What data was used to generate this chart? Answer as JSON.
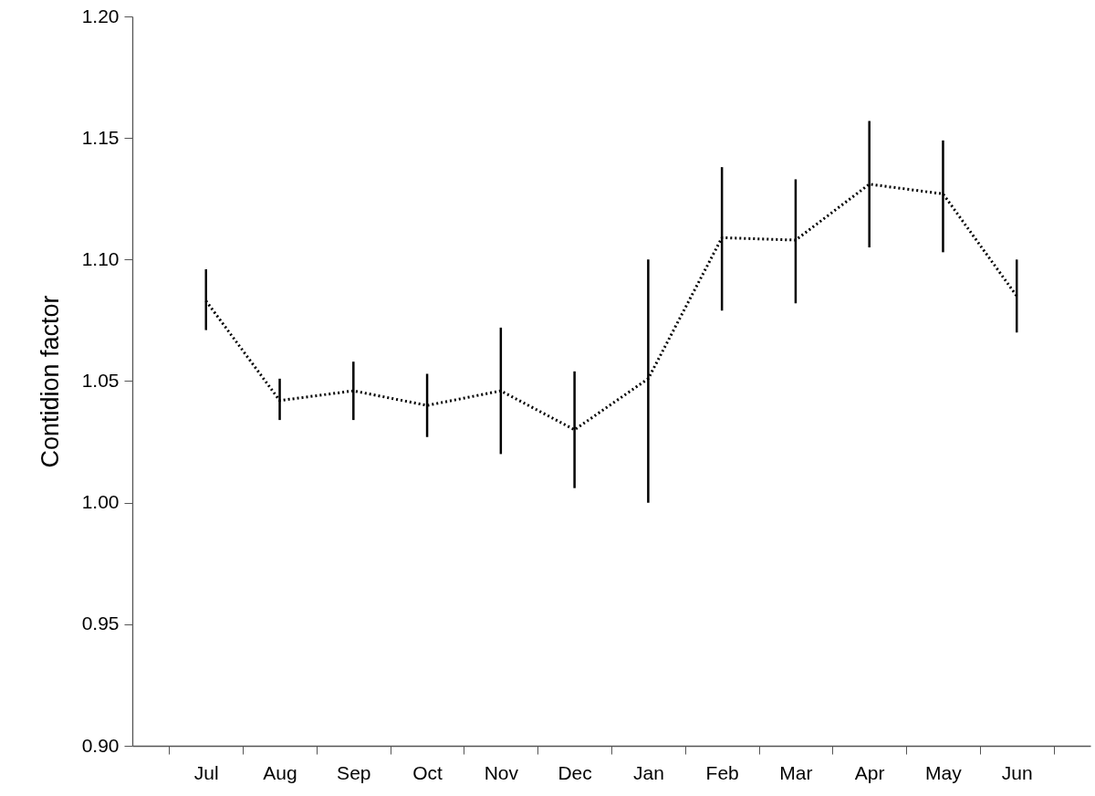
{
  "chart_data": {
    "type": "line",
    "ylabel": "Contidion factor",
    "categories": [
      "Jul",
      "Aug",
      "Sep",
      "Oct",
      "Nov",
      "Dec",
      "Jan",
      "Feb",
      "Mar",
      "Apr",
      "May",
      "Jun"
    ],
    "series": [
      {
        "color": "#000000",
        "values": [
          1.083,
          1.042,
          1.046,
          1.04,
          1.046,
          1.03,
          1.051,
          1.109,
          1.108,
          1.131,
          1.127,
          1.085
        ],
        "errors": [
          [
            1.071,
            1.096
          ],
          [
            1.034,
            1.051
          ],
          [
            1.034,
            1.058
          ],
          [
            1.027,
            1.053
          ],
          [
            1.02,
            1.072
          ],
          [
            1.006,
            1.054
          ],
          [
            1.0,
            1.1
          ],
          [
            1.079,
            1.138
          ],
          [
            1.082,
            1.133
          ],
          [
            1.105,
            1.157
          ],
          [
            1.103,
            1.149
          ],
          [
            1.07,
            1.1
          ]
        ]
      }
    ],
    "ylim": [
      0.9,
      1.2
    ],
    "yticks": [
      {
        "value": 0.9,
        "label": "0.90"
      },
      {
        "value": 0.95,
        "label": "0.95"
      },
      {
        "value": 1.0,
        "label": "1.00"
      },
      {
        "value": 1.05,
        "label": "1.05"
      },
      {
        "value": 1.1,
        "label": "1.10"
      },
      {
        "value": 1.15,
        "label": "1.15"
      },
      {
        "value": 1.2,
        "label": "1.20"
      }
    ],
    "grid": false,
    "marker": "none",
    "line_style": "dotted"
  }
}
